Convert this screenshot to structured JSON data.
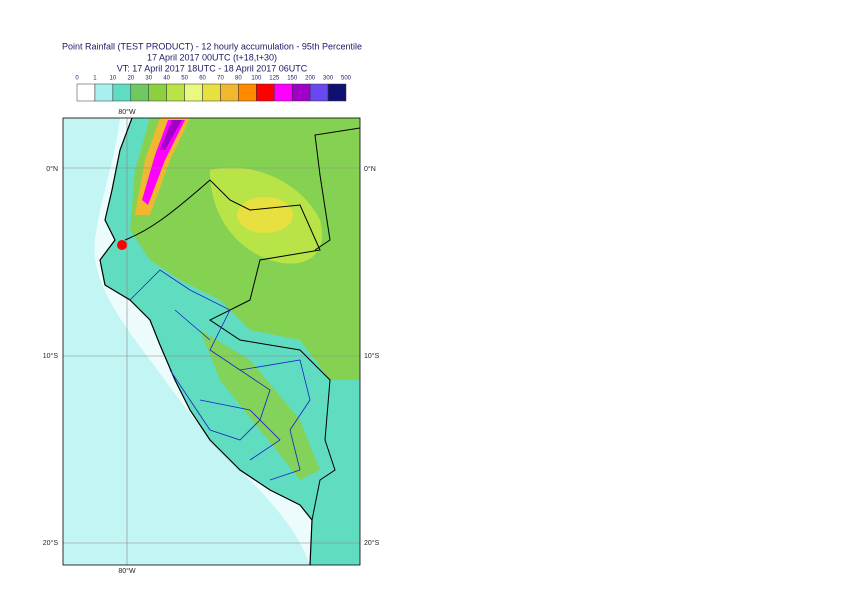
{
  "header": {
    "title": [
      "Point Rainfall (TEST PRODUCT) - 12 hourly accumulation - 95th Percentile",
      "17 April 2017 00UTC (t+18,t+30)",
      "VT: 17 April 2017 18UTC - 18 April 2017 06UTC"
    ]
  },
  "colorbar": {
    "labels": [
      0,
      1,
      10,
      20,
      30,
      40,
      50,
      60,
      70,
      80,
      100,
      125,
      150,
      200,
      300,
      500
    ],
    "colors": [
      "#ffffff",
      "#a8f0f0",
      "#60dcc0",
      "#70c860",
      "#8cd040",
      "#b8e448",
      "#e8f880",
      "#e8e040",
      "#f0b830",
      "#ff8a00",
      "#ff0000",
      "#ff00ff",
      "#a000c8",
      "#6a48f0",
      "#101070"
    ]
  },
  "map": {
    "lon_labels": [
      "80°W",
      "80°W"
    ],
    "lat_labels_left": [
      "0°N",
      "10°S",
      "20°S"
    ],
    "lat_labels_right": [
      "0°N",
      "10°S",
      "20°S"
    ]
  }
}
